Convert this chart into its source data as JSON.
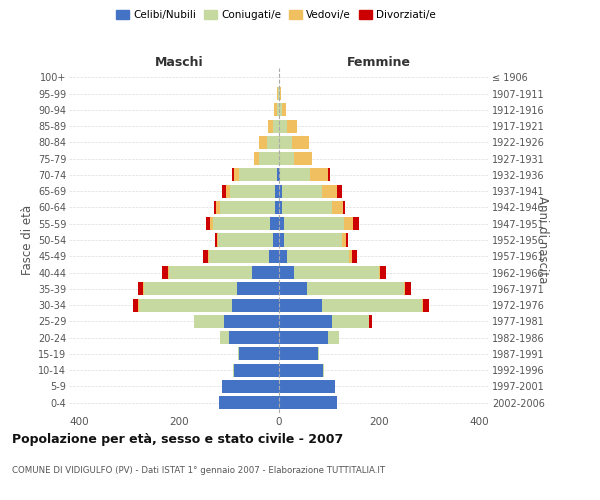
{
  "age_groups": [
    "0-4",
    "5-9",
    "10-14",
    "15-19",
    "20-24",
    "25-29",
    "30-34",
    "35-39",
    "40-44",
    "45-49",
    "50-54",
    "55-59",
    "60-64",
    "65-69",
    "70-74",
    "75-79",
    "80-84",
    "85-89",
    "90-94",
    "95-99",
    "100+"
  ],
  "birth_years": [
    "2002-2006",
    "1997-2001",
    "1992-1996",
    "1987-1991",
    "1982-1986",
    "1977-1981",
    "1972-1976",
    "1967-1971",
    "1962-1966",
    "1957-1961",
    "1952-1956",
    "1947-1951",
    "1942-1946",
    "1937-1941",
    "1932-1936",
    "1927-1931",
    "1922-1926",
    "1917-1921",
    "1912-1916",
    "1907-1911",
    "≤ 1906"
  ],
  "males": {
    "celibi": [
      120,
      115,
      90,
      80,
      100,
      110,
      95,
      85,
      55,
      20,
      12,
      18,
      8,
      8,
      5,
      0,
      0,
      0,
      0,
      0,
      0
    ],
    "coniugati": [
      0,
      0,
      2,
      2,
      18,
      60,
      185,
      185,
      165,
      120,
      110,
      115,
      110,
      90,
      75,
      40,
      25,
      12,
      5,
      2,
      0
    ],
    "vedovi": [
      0,
      0,
      0,
      0,
      0,
      0,
      2,
      2,
      2,
      2,
      2,
      5,
      8,
      8,
      10,
      10,
      15,
      10,
      5,
      2,
      0
    ],
    "divorziati": [
      0,
      0,
      0,
      0,
      0,
      0,
      10,
      10,
      12,
      10,
      5,
      8,
      5,
      8,
      5,
      0,
      0,
      0,
      0,
      0,
      0
    ]
  },
  "females": {
    "nubili": [
      115,
      112,
      88,
      78,
      98,
      105,
      85,
      55,
      30,
      15,
      10,
      10,
      5,
      5,
      2,
      0,
      0,
      0,
      0,
      0,
      0
    ],
    "coniugate": [
      0,
      0,
      2,
      2,
      22,
      75,
      200,
      195,
      170,
      125,
      115,
      120,
      100,
      80,
      60,
      30,
      25,
      15,
      5,
      2,
      0
    ],
    "vedove": [
      0,
      0,
      0,
      0,
      0,
      0,
      2,
      2,
      2,
      5,
      8,
      18,
      22,
      30,
      35,
      35,
      35,
      20,
      8,
      2,
      0
    ],
    "divorziate": [
      0,
      0,
      0,
      0,
      0,
      5,
      12,
      12,
      12,
      10,
      5,
      12,
      5,
      10,
      5,
      0,
      0,
      0,
      0,
      0,
      0
    ]
  },
  "colors": {
    "celibi": "#4472c4",
    "coniugati": "#c5d9a0",
    "vedovi": "#f0c060",
    "divorziati": "#cc0000"
  },
  "xlim": 420,
  "xticks": [
    -400,
    -200,
    0,
    200,
    400
  ],
  "xtick_labels": [
    "400",
    "200",
    "0",
    "200",
    "400"
  ],
  "title": "Popolazione per età, sesso e stato civile - 2007",
  "subtitle": "COMUNE DI VIDIGULFO (PV) - Dati ISTAT 1° gennaio 2007 - Elaborazione TUTTITALIA.IT",
  "ylabel_left": "Fasce di età",
  "ylabel_right": "Anni di nascita",
  "xlabel_maschi": "Maschi",
  "xlabel_femmine": "Femmine",
  "legend_labels": [
    "Celibi/Nubili",
    "Coniugati/e",
    "Vedovi/e",
    "Divorziati/e"
  ]
}
